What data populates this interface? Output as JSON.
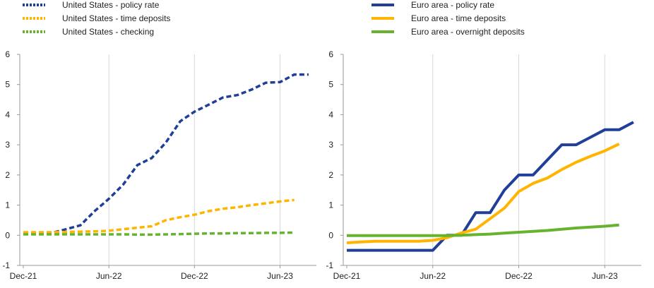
{
  "chart_data": [
    {
      "type": "line",
      "title": "",
      "xlabel": "",
      "ylabel": "",
      "ylim": [
        -1,
        6
      ],
      "yticks": [
        "-1",
        "0",
        "1",
        "2",
        "3",
        "4",
        "5",
        "6"
      ],
      "xticks": [
        "Dec-21",
        "Jun-22",
        "Dec-22",
        "Jun-23"
      ],
      "x_range": [
        0,
        20
      ],
      "x": [
        0,
        1,
        2,
        3,
        4,
        5,
        6,
        7,
        8,
        9,
        10,
        11,
        12,
        13,
        14,
        15,
        16,
        17,
        18,
        19,
        20
      ],
      "legend_placement": "top-left",
      "series": [
        {
          "name": "United States - policy rate",
          "color": "#1f3f99",
          "style": "dashed",
          "values": [
            0.08,
            0.08,
            0.08,
            0.2,
            0.33,
            0.8,
            1.21,
            1.68,
            2.33,
            2.56,
            3.08,
            3.78,
            4.1,
            4.33,
            4.57,
            4.65,
            4.83,
            5.06,
            5.08,
            5.33,
            5.33
          ]
        },
        {
          "name": "United States - time deposits",
          "color": "#ffb400",
          "style": "dashed",
          "values": [
            0.1,
            0.1,
            0.1,
            0.11,
            0.12,
            0.13,
            0.15,
            0.2,
            0.25,
            0.3,
            0.5,
            0.6,
            0.68,
            0.8,
            0.88,
            0.93,
            1.0,
            1.06,
            1.12,
            1.17,
            null
          ]
        },
        {
          "name": "United States - checking",
          "color": "#65b32e",
          "style": "dashed",
          "values": [
            0.03,
            0.03,
            0.03,
            0.03,
            0.03,
            0.03,
            0.03,
            0.03,
            0.02,
            0.02,
            0.03,
            0.04,
            0.05,
            0.06,
            0.06,
            0.07,
            0.07,
            0.08,
            0.08,
            0.09,
            null
          ]
        }
      ]
    },
    {
      "type": "line",
      "title": "",
      "xlabel": "",
      "ylabel": "",
      "ylim": [
        -1,
        6
      ],
      "yticks": [
        "-1",
        "0",
        "1",
        "2",
        "3",
        "4",
        "5",
        "6"
      ],
      "xticks": [
        "Dec-21",
        "Jun-22",
        "Dec-22",
        "Jun-23"
      ],
      "x_range": [
        0,
        20
      ],
      "x": [
        0,
        1,
        2,
        3,
        4,
        5,
        6,
        7,
        8,
        9,
        10,
        11,
        12,
        13,
        14,
        15,
        16,
        17,
        18,
        19,
        20
      ],
      "legend_placement": "top-left",
      "series": [
        {
          "name": "Euro area - policy rate",
          "color": "#1f3f99",
          "style": "solid",
          "values": [
            -0.5,
            -0.5,
            -0.5,
            -0.5,
            -0.5,
            -0.5,
            -0.5,
            0.0,
            0.0,
            0.75,
            0.75,
            1.5,
            2.0,
            2.0,
            2.5,
            3.0,
            3.0,
            3.25,
            3.5,
            3.5,
            3.75
          ]
        },
        {
          "name": "Euro area - time deposits",
          "color": "#ffb400",
          "style": "solid",
          "values": [
            -0.25,
            -0.22,
            -0.2,
            -0.2,
            -0.2,
            -0.2,
            -0.17,
            -0.08,
            0.08,
            0.2,
            0.55,
            0.9,
            1.45,
            1.72,
            1.9,
            2.18,
            2.42,
            2.62,
            2.8,
            3.03,
            null
          ]
        },
        {
          "name": "Euro area - overnight deposits",
          "color": "#65b32e",
          "style": "solid",
          "values": [
            -0.01,
            -0.01,
            -0.01,
            -0.01,
            -0.01,
            -0.01,
            -0.01,
            -0.01,
            0.0,
            0.02,
            0.04,
            0.07,
            0.1,
            0.13,
            0.16,
            0.2,
            0.24,
            0.27,
            0.3,
            0.34,
            null
          ]
        }
      ]
    }
  ]
}
